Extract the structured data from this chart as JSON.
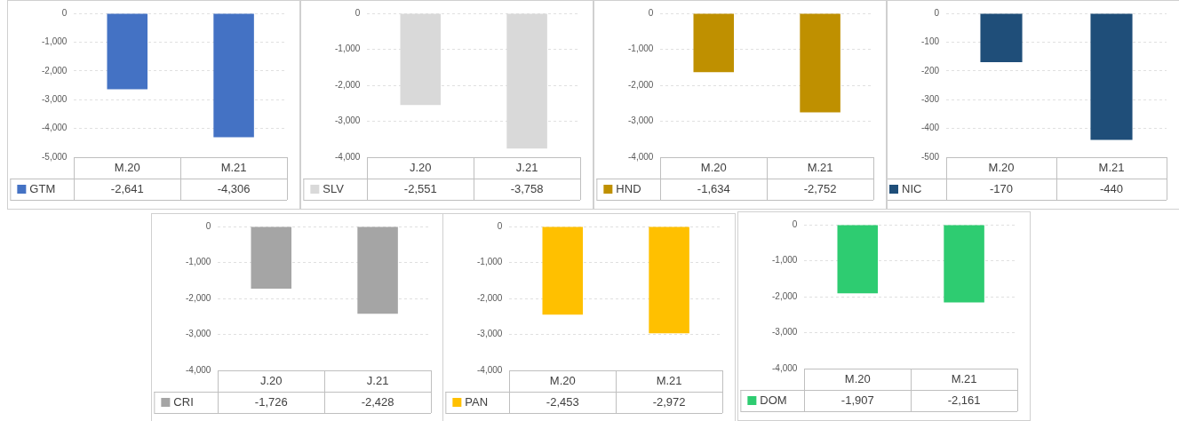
{
  "chart_data": [
    {
      "type": "bar",
      "categories": [
        "M.20",
        "M.21"
      ],
      "series": [
        {
          "name": "GTM",
          "color": "#4472c4",
          "values": [
            -2641,
            -4306
          ]
        }
      ],
      "value_labels": [
        "-2,641",
        "-4,306"
      ],
      "ylim": [
        -5000,
        0
      ],
      "yticks": [
        {
          "value": -5000,
          "label": "-5,000"
        },
        {
          "value": -4000,
          "label": "-4,000"
        },
        {
          "value": -3000,
          "label": "-3,000"
        },
        {
          "value": -2000,
          "label": "-2,000"
        },
        {
          "value": -1000,
          "label": "-1,000"
        },
        0
      ],
      "grid": "y",
      "legend": "bottom"
    },
    {
      "type": "bar",
      "categories": [
        "J.20",
        "J.21"
      ],
      "series": [
        {
          "name": "SLV",
          "color": "#d9d9d9",
          "values": [
            -2551,
            -3758
          ]
        }
      ],
      "value_labels": [
        "-2,551",
        "-3,758"
      ],
      "ylim": [
        -4000,
        0
      ],
      "yticks": [
        {
          "value": -4000,
          "label": "-4,000"
        },
        {
          "value": -3000,
          "label": "-3,000"
        },
        {
          "value": -2000,
          "label": "-2,000"
        },
        {
          "value": -1000,
          "label": "-1,000"
        },
        0
      ],
      "grid": "y",
      "legend": "bottom"
    },
    {
      "type": "bar",
      "categories": [
        "M.20",
        "M.21"
      ],
      "series": [
        {
          "name": "HND",
          "color": "#bf9000",
          "values": [
            -1634,
            -2752
          ]
        }
      ],
      "value_labels": [
        "-1,634",
        "-2,752"
      ],
      "ylim": [
        -4000,
        0
      ],
      "yticks": [
        {
          "value": -4000,
          "label": "-4,000"
        },
        {
          "value": -3000,
          "label": "-3,000"
        },
        {
          "value": -2000,
          "label": "-2,000"
        },
        {
          "value": -1000,
          "label": "-1,000"
        },
        0
      ],
      "grid": "y",
      "legend": "bottom"
    },
    {
      "type": "bar",
      "categories": [
        "M.20",
        "M.21"
      ],
      "series": [
        {
          "name": "NIC",
          "color": "#1f4e79",
          "values": [
            -170,
            -440
          ]
        }
      ],
      "value_labels": [
        "-170",
        "-440"
      ],
      "ylim": [
        -500,
        0
      ],
      "yticks": [
        -500,
        -400,
        -300,
        -200,
        -100,
        0
      ],
      "grid": "y",
      "legend": "bottom"
    },
    {
      "type": "bar",
      "categories": [
        "J.20",
        "J.21"
      ],
      "series": [
        {
          "name": "CRI",
          "color": "#a5a5a5",
          "values": [
            -1726,
            -2428
          ]
        }
      ],
      "value_labels": [
        "-1,726",
        "-2,428"
      ],
      "ylim": [
        -4000,
        0
      ],
      "yticks": [
        {
          "value": -4000,
          "label": "-4,000"
        },
        {
          "value": -3000,
          "label": "-3,000"
        },
        {
          "value": -2000,
          "label": "-2,000"
        },
        {
          "value": -1000,
          "label": "-1,000"
        },
        0
      ],
      "grid": "y",
      "legend": "bottom"
    },
    {
      "type": "bar",
      "categories": [
        "M.20",
        "M.21"
      ],
      "series": [
        {
          "name": "PAN",
          "color": "#ffc000",
          "values": [
            -2453,
            -2972
          ]
        }
      ],
      "value_labels": [
        "-2,453",
        "-2,972"
      ],
      "ylim": [
        -4000,
        0
      ],
      "yticks": [
        {
          "value": -4000,
          "label": "-4,000"
        },
        {
          "value": -3000,
          "label": "-3,000"
        },
        {
          "value": -2000,
          "label": "-2,000"
        },
        {
          "value": -1000,
          "label": "-1,000"
        },
        0
      ],
      "grid": "y",
      "legend": "bottom"
    },
    {
      "type": "bar",
      "categories": [
        "M.20",
        "M.21"
      ],
      "series": [
        {
          "name": "DOM",
          "color": "#2ecc71",
          "values": [
            -1907,
            -2161
          ]
        }
      ],
      "value_labels": [
        "-1,907",
        "-2,161"
      ],
      "ylim": [
        -4000,
        0
      ],
      "yticks": [
        {
          "value": -4000,
          "label": "-4,000"
        },
        {
          "value": -3000,
          "label": "-3,000"
        },
        {
          "value": -2000,
          "label": "-2,000"
        },
        {
          "value": -1000,
          "label": "-1,000"
        },
        0
      ],
      "grid": "y",
      "legend": "bottom"
    }
  ]
}
